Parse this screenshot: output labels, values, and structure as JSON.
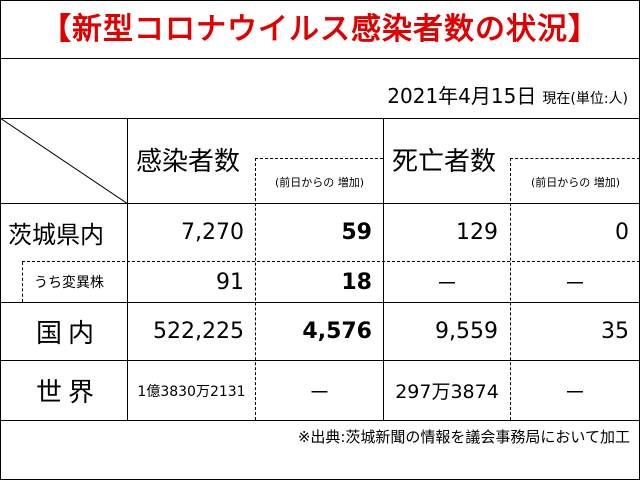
{
  "title": "【新型コロナウイルス感染者数の状況】",
  "date": "2021年4月15日",
  "unit_note": "現在(単位:人)",
  "headers": {
    "infections": "感染者数",
    "infections_sub": "(前日からの 増加)",
    "deaths": "死亡者数",
    "deaths_sub": "(前日からの 増加)"
  },
  "rows": [
    {
      "label": "茨城県内",
      "infections": "7,270",
      "inc": "59",
      "deaths": "129",
      "death_inc": "0"
    },
    {
      "label": "うち変異株",
      "infections": "91",
      "inc": "18",
      "deaths": "－",
      "death_inc": "－"
    },
    {
      "label": "国内",
      "infections": "522,225",
      "inc": "4,576",
      "deaths": "9,559",
      "death_inc": "35"
    },
    {
      "label": "世界",
      "infections": "1億3830万2131",
      "inc": "－",
      "deaths": "297万3874",
      "death_inc": "－"
    }
  ],
  "source_note": "※出典:茨城新聞の情報を議会事務局において加工"
}
